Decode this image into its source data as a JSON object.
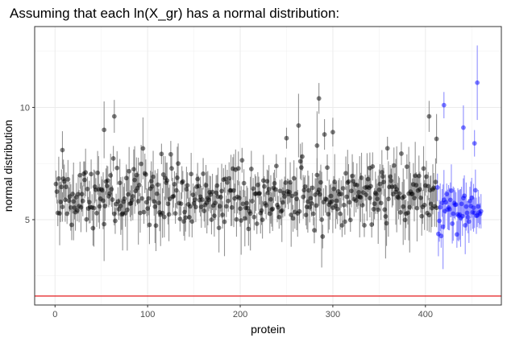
{
  "chart_data": {
    "type": "scatter",
    "title": "Assuming that each ln(X_gr) has a normal distribution:",
    "xlabel": "protein",
    "ylabel": "normal distribution",
    "xlim": [
      -22,
      482
    ],
    "ylim": [
      1.2,
      13.6
    ],
    "x_ticks": [
      0,
      100,
      200,
      300,
      400
    ],
    "y_ticks": [
      5,
      10
    ],
    "x_tick_labels": [
      "0",
      "100",
      "200",
      "300",
      "400"
    ],
    "y_tick_labels": [
      "5",
      "10"
    ],
    "grid": true,
    "legend": "none",
    "reference_line": {
      "y": 1.6,
      "color": "#e41a1c"
    },
    "series_colors": [
      "#000000",
      "#0000ff"
    ],
    "errorbar_color": "#808080",
    "errorbar_highlight_color": "#7b7bff",
    "black_group": {
      "x_range": [
        1,
        412
      ],
      "y_center": 6.0,
      "y_spread": 0.9
    },
    "blue_group": {
      "x_range": [
        413,
        460
      ],
      "y_center": 5.4,
      "y_spread": 0.7
    },
    "highlighted_points": [
      {
        "x": 8,
        "y": 8.1
      },
      {
        "x": 53,
        "y": 9.0
      },
      {
        "x": 64,
        "y": 9.6
      },
      {
        "x": 285,
        "y": 10.4
      },
      {
        "x": 283,
        "y": 8.3
      },
      {
        "x": 300,
        "y": 8.9
      },
      {
        "x": 340,
        "y": 7.3
      },
      {
        "x": 404,
        "y": 9.6
      },
      {
        "x": 412,
        "y": 8.6
      },
      {
        "x": 420,
        "y": 10.1
      },
      {
        "x": 441,
        "y": 9.1
      },
      {
        "x": 456,
        "y": 11.1
      },
      {
        "x": 453,
        "y": 8.4
      }
    ]
  }
}
